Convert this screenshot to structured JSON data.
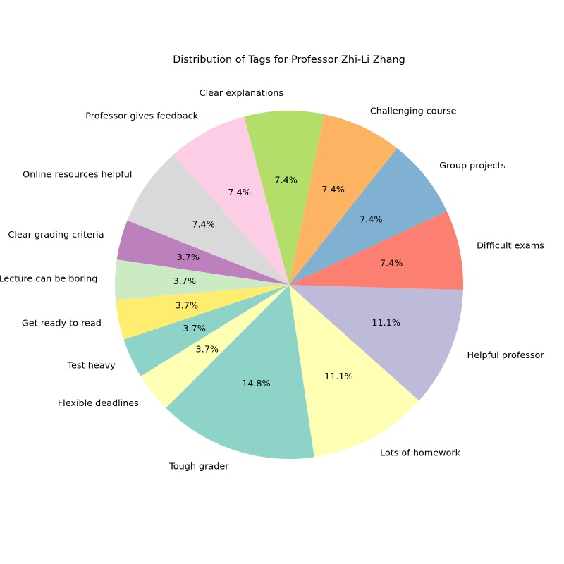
{
  "chart_data": {
    "type": "pie",
    "title": "Distribution of Tags for Professor Zhi-Li Zhang",
    "start_angle_deg": 225,
    "direction": "counterclockwise",
    "slices": [
      {
        "label": "Tough grader",
        "value": 4,
        "percent_label": "14.8%",
        "color": "#8dd3c7"
      },
      {
        "label": "Lots of homework",
        "value": 3,
        "percent_label": "11.1%",
        "color": "#ffffb3"
      },
      {
        "label": "Helpful professor",
        "value": 3,
        "percent_label": "11.1%",
        "color": "#bebada"
      },
      {
        "label": "Difficult exams",
        "value": 2,
        "percent_label": "7.4%",
        "color": "#fb8072"
      },
      {
        "label": "Group projects",
        "value": 2,
        "percent_label": "7.4%",
        "color": "#80b1d3"
      },
      {
        "label": "Challenging course",
        "value": 2,
        "percent_label": "7.4%",
        "color": "#fdb462"
      },
      {
        "label": "Clear explanations",
        "value": 2,
        "percent_label": "7.4%",
        "color": "#b3de69"
      },
      {
        "label": "Professor gives feedback",
        "value": 2,
        "percent_label": "7.4%",
        "color": "#fccde5"
      },
      {
        "label": "Online resources helpful",
        "value": 2,
        "percent_label": "7.4%",
        "color": "#d9d9d9"
      },
      {
        "label": "Clear grading criteria",
        "value": 1,
        "percent_label": "3.7%",
        "color": "#bc80bd"
      },
      {
        "label": "Lecture can be boring",
        "value": 1,
        "percent_label": "3.7%",
        "color": "#ccebc5"
      },
      {
        "label": "Get ready to read",
        "value": 1,
        "percent_label": "3.7%",
        "color": "#ffed6f"
      },
      {
        "label": "Test heavy",
        "value": 1,
        "percent_label": "3.7%",
        "color": "#8dd3c7"
      },
      {
        "label": "Flexible deadlines",
        "value": 1,
        "percent_label": "3.7%",
        "color": "#ffffb3"
      }
    ]
  }
}
